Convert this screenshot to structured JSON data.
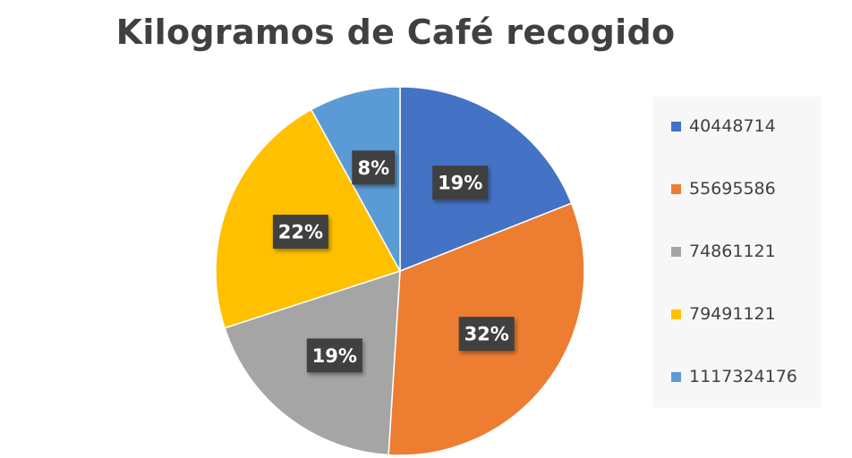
{
  "chart_data": {
    "type": "pie",
    "title": "Kilogramos de Café recogido",
    "categories": [
      "40448714",
      "55695586",
      "74861121",
      "79491121",
      "1117324176"
    ],
    "values": [
      19,
      32,
      19,
      22,
      8
    ],
    "data_labels": [
      "19%",
      "32%",
      "19%",
      "22%",
      "8%"
    ],
    "colors": [
      "#4472c4",
      "#ed7d31",
      "#a5a5a5",
      "#ffc000",
      "#5b9bd5"
    ],
    "legend_position": "right"
  }
}
